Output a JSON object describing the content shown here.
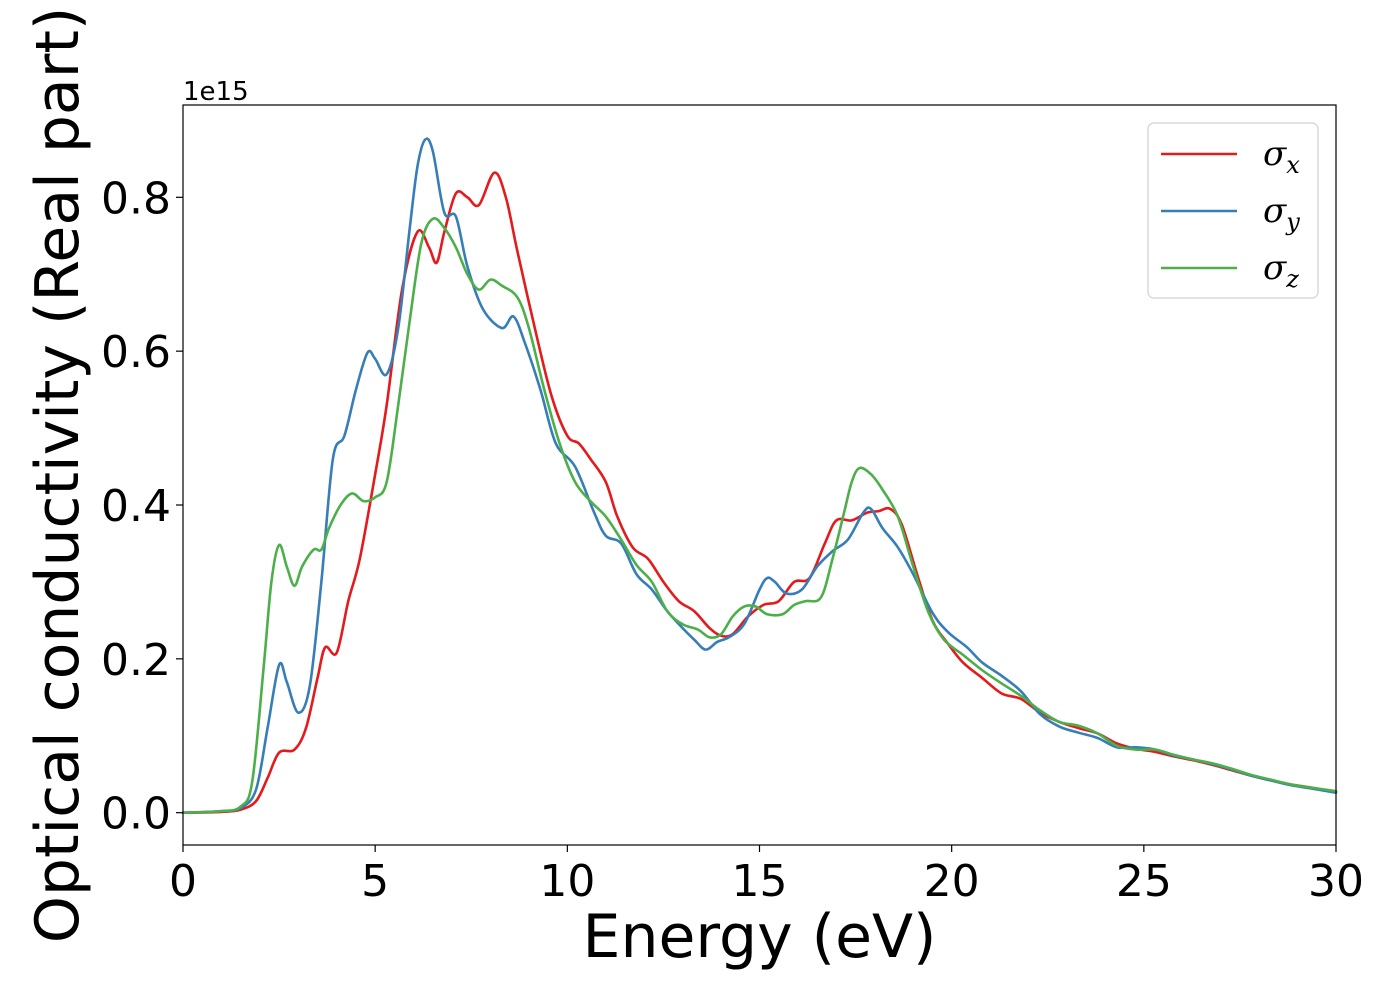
{
  "chart_data": {
    "type": "line",
    "title": "",
    "xlabel": "Energy (eV)",
    "ylabel": "Optical conductivity (Real part)",
    "y_offset_text": "1e15",
    "xlim": [
      0,
      30
    ],
    "ylim": [
      -0.042,
      0.92
    ],
    "xticks": [
      0,
      5,
      10,
      15,
      20,
      25,
      30
    ],
    "xtick_labels": [
      "0",
      "5",
      "10",
      "15",
      "20",
      "25",
      "30"
    ],
    "yticks": [
      0.0,
      0.2,
      0.4,
      0.6,
      0.8
    ],
    "ytick_labels": [
      "0.0",
      "0.2",
      "0.4",
      "0.6",
      "0.8"
    ],
    "grid": false,
    "legend_position": "top-right",
    "series": [
      {
        "name": "σx",
        "symbol": "σ",
        "subscript": "x",
        "color": "#e41a1c",
        "points": [
          [
            0,
            0.0
          ],
          [
            1,
            0.001
          ],
          [
            1.5,
            0.004
          ],
          [
            1.9,
            0.015
          ],
          [
            2.2,
            0.045
          ],
          [
            2.5,
            0.078
          ],
          [
            2.9,
            0.082
          ],
          [
            3.2,
            0.11
          ],
          [
            3.5,
            0.175
          ],
          [
            3.7,
            0.215
          ],
          [
            4.0,
            0.208
          ],
          [
            4.3,
            0.275
          ],
          [
            4.6,
            0.33
          ],
          [
            5.0,
            0.44
          ],
          [
            5.3,
            0.53
          ],
          [
            5.7,
            0.68
          ],
          [
            6.1,
            0.755
          ],
          [
            6.4,
            0.735
          ],
          [
            6.6,
            0.715
          ],
          [
            6.8,
            0.755
          ],
          [
            7.1,
            0.805
          ],
          [
            7.4,
            0.8
          ],
          [
            7.7,
            0.79
          ],
          [
            8.1,
            0.832
          ],
          [
            8.4,
            0.8
          ],
          [
            8.7,
            0.73
          ],
          [
            9.2,
            0.62
          ],
          [
            9.6,
            0.54
          ],
          [
            10.0,
            0.49
          ],
          [
            10.3,
            0.48
          ],
          [
            10.6,
            0.46
          ],
          [
            11.0,
            0.43
          ],
          [
            11.3,
            0.385
          ],
          [
            11.7,
            0.345
          ],
          [
            12.1,
            0.33
          ],
          [
            12.5,
            0.3
          ],
          [
            12.9,
            0.275
          ],
          [
            13.3,
            0.262
          ],
          [
            13.7,
            0.24
          ],
          [
            14.0,
            0.23
          ],
          [
            14.3,
            0.232
          ],
          [
            14.7,
            0.255
          ],
          [
            15.1,
            0.27
          ],
          [
            15.5,
            0.275
          ],
          [
            15.9,
            0.3
          ],
          [
            16.3,
            0.305
          ],
          [
            16.7,
            0.35
          ],
          [
            17.0,
            0.38
          ],
          [
            17.4,
            0.38
          ],
          [
            17.8,
            0.39
          ],
          [
            18.1,
            0.392
          ],
          [
            18.4,
            0.395
          ],
          [
            18.7,
            0.375
          ],
          [
            19.1,
            0.31
          ],
          [
            19.5,
            0.25
          ],
          [
            19.9,
            0.22
          ],
          [
            20.3,
            0.195
          ],
          [
            20.8,
            0.175
          ],
          [
            21.3,
            0.155
          ],
          [
            21.8,
            0.148
          ],
          [
            22.3,
            0.13
          ],
          [
            22.8,
            0.118
          ],
          [
            23.3,
            0.11
          ],
          [
            23.8,
            0.103
          ],
          [
            24.3,
            0.09
          ],
          [
            24.8,
            0.083
          ],
          [
            25.3,
            0.079
          ],
          [
            25.8,
            0.073
          ],
          [
            26.3,
            0.068
          ],
          [
            26.8,
            0.062
          ],
          [
            27.3,
            0.055
          ],
          [
            27.8,
            0.048
          ],
          [
            28.3,
            0.042
          ],
          [
            28.8,
            0.037
          ],
          [
            29.3,
            0.033
          ],
          [
            30.0,
            0.027
          ]
        ]
      },
      {
        "name": "σy",
        "symbol": "σ",
        "subscript": "y",
        "color": "#377eb8",
        "points": [
          [
            0,
            0.0
          ],
          [
            1,
            0.002
          ],
          [
            1.5,
            0.006
          ],
          [
            1.9,
            0.03
          ],
          [
            2.2,
            0.11
          ],
          [
            2.5,
            0.192
          ],
          [
            2.7,
            0.17
          ],
          [
            3.0,
            0.13
          ],
          [
            3.3,
            0.165
          ],
          [
            3.6,
            0.3
          ],
          [
            3.9,
            0.46
          ],
          [
            4.2,
            0.49
          ],
          [
            4.5,
            0.55
          ],
          [
            4.8,
            0.598
          ],
          [
            5.0,
            0.59
          ],
          [
            5.3,
            0.57
          ],
          [
            5.6,
            0.63
          ],
          [
            5.9,
            0.76
          ],
          [
            6.1,
            0.84
          ],
          [
            6.3,
            0.875
          ],
          [
            6.5,
            0.86
          ],
          [
            6.8,
            0.78
          ],
          [
            7.1,
            0.775
          ],
          [
            7.4,
            0.71
          ],
          [
            7.8,
            0.655
          ],
          [
            8.3,
            0.63
          ],
          [
            8.6,
            0.645
          ],
          [
            8.9,
            0.61
          ],
          [
            9.3,
            0.55
          ],
          [
            9.7,
            0.48
          ],
          [
            10.2,
            0.45
          ],
          [
            10.7,
            0.39
          ],
          [
            11.0,
            0.36
          ],
          [
            11.4,
            0.35
          ],
          [
            11.8,
            0.31
          ],
          [
            12.2,
            0.29
          ],
          [
            12.6,
            0.262
          ],
          [
            13.0,
            0.24
          ],
          [
            13.3,
            0.225
          ],
          [
            13.6,
            0.212
          ],
          [
            13.9,
            0.222
          ],
          [
            14.2,
            0.228
          ],
          [
            14.6,
            0.245
          ],
          [
            15.0,
            0.29
          ],
          [
            15.2,
            0.305
          ],
          [
            15.4,
            0.3
          ],
          [
            15.7,
            0.285
          ],
          [
            16.1,
            0.29
          ],
          [
            16.5,
            0.32
          ],
          [
            16.9,
            0.34
          ],
          [
            17.3,
            0.355
          ],
          [
            17.7,
            0.39
          ],
          [
            17.9,
            0.395
          ],
          [
            18.2,
            0.37
          ],
          [
            18.6,
            0.345
          ],
          [
            19.0,
            0.31
          ],
          [
            19.5,
            0.26
          ],
          [
            19.9,
            0.235
          ],
          [
            20.4,
            0.215
          ],
          [
            20.8,
            0.195
          ],
          [
            21.3,
            0.178
          ],
          [
            21.8,
            0.158
          ],
          [
            22.3,
            0.128
          ],
          [
            22.8,
            0.112
          ],
          [
            23.3,
            0.104
          ],
          [
            23.8,
            0.097
          ],
          [
            24.3,
            0.085
          ],
          [
            24.8,
            0.085
          ],
          [
            25.3,
            0.082
          ],
          [
            25.8,
            0.074
          ],
          [
            26.3,
            0.069
          ],
          [
            26.8,
            0.063
          ],
          [
            27.3,
            0.056
          ],
          [
            27.8,
            0.048
          ],
          [
            28.3,
            0.042
          ],
          [
            28.8,
            0.036
          ],
          [
            29.3,
            0.032
          ],
          [
            30.0,
            0.026
          ]
        ]
      },
      {
        "name": "σz",
        "symbol": "σ",
        "subscript": "z",
        "color": "#4daf4a",
        "points": [
          [
            0,
            0.0
          ],
          [
            1,
            0.002
          ],
          [
            1.5,
            0.008
          ],
          [
            1.8,
            0.04
          ],
          [
            2.1,
            0.19
          ],
          [
            2.3,
            0.3
          ],
          [
            2.5,
            0.348
          ],
          [
            2.7,
            0.32
          ],
          [
            2.9,
            0.295
          ],
          [
            3.1,
            0.32
          ],
          [
            3.4,
            0.342
          ],
          [
            3.6,
            0.342
          ],
          [
            3.8,
            0.37
          ],
          [
            4.1,
            0.4
          ],
          [
            4.4,
            0.415
          ],
          [
            4.7,
            0.405
          ],
          [
            5.0,
            0.41
          ],
          [
            5.3,
            0.43
          ],
          [
            5.6,
            0.53
          ],
          [
            5.9,
            0.64
          ],
          [
            6.2,
            0.74
          ],
          [
            6.5,
            0.772
          ],
          [
            6.8,
            0.76
          ],
          [
            7.1,
            0.735
          ],
          [
            7.4,
            0.7
          ],
          [
            7.7,
            0.68
          ],
          [
            8.0,
            0.693
          ],
          [
            8.3,
            0.685
          ],
          [
            8.7,
            0.67
          ],
          [
            9.0,
            0.63
          ],
          [
            9.4,
            0.55
          ],
          [
            9.8,
            0.48
          ],
          [
            10.2,
            0.43
          ],
          [
            10.6,
            0.405
          ],
          [
            11.0,
            0.385
          ],
          [
            11.4,
            0.355
          ],
          [
            11.8,
            0.322
          ],
          [
            12.2,
            0.3
          ],
          [
            12.6,
            0.262
          ],
          [
            13.0,
            0.245
          ],
          [
            13.4,
            0.238
          ],
          [
            13.7,
            0.228
          ],
          [
            14.0,
            0.232
          ],
          [
            14.3,
            0.255
          ],
          [
            14.6,
            0.268
          ],
          [
            14.9,
            0.268
          ],
          [
            15.2,
            0.258
          ],
          [
            15.6,
            0.258
          ],
          [
            15.9,
            0.27
          ],
          [
            16.2,
            0.275
          ],
          [
            16.6,
            0.28
          ],
          [
            16.9,
            0.33
          ],
          [
            17.2,
            0.39
          ],
          [
            17.4,
            0.43
          ],
          [
            17.6,
            0.448
          ],
          [
            17.9,
            0.44
          ],
          [
            18.2,
            0.42
          ],
          [
            18.6,
            0.385
          ],
          [
            19.0,
            0.32
          ],
          [
            19.4,
            0.26
          ],
          [
            19.8,
            0.225
          ],
          [
            20.3,
            0.205
          ],
          [
            20.8,
            0.185
          ],
          [
            21.3,
            0.168
          ],
          [
            21.8,
            0.152
          ],
          [
            22.3,
            0.133
          ],
          [
            22.8,
            0.118
          ],
          [
            23.3,
            0.113
          ],
          [
            23.8,
            0.103
          ],
          [
            24.3,
            0.087
          ],
          [
            24.8,
            0.082
          ],
          [
            25.3,
            0.082
          ],
          [
            25.8,
            0.075
          ],
          [
            26.3,
            0.069
          ],
          [
            26.8,
            0.064
          ],
          [
            27.3,
            0.057
          ],
          [
            27.8,
            0.049
          ],
          [
            28.3,
            0.043
          ],
          [
            28.8,
            0.037
          ],
          [
            29.3,
            0.033
          ],
          [
            30.0,
            0.028
          ]
        ]
      }
    ]
  }
}
